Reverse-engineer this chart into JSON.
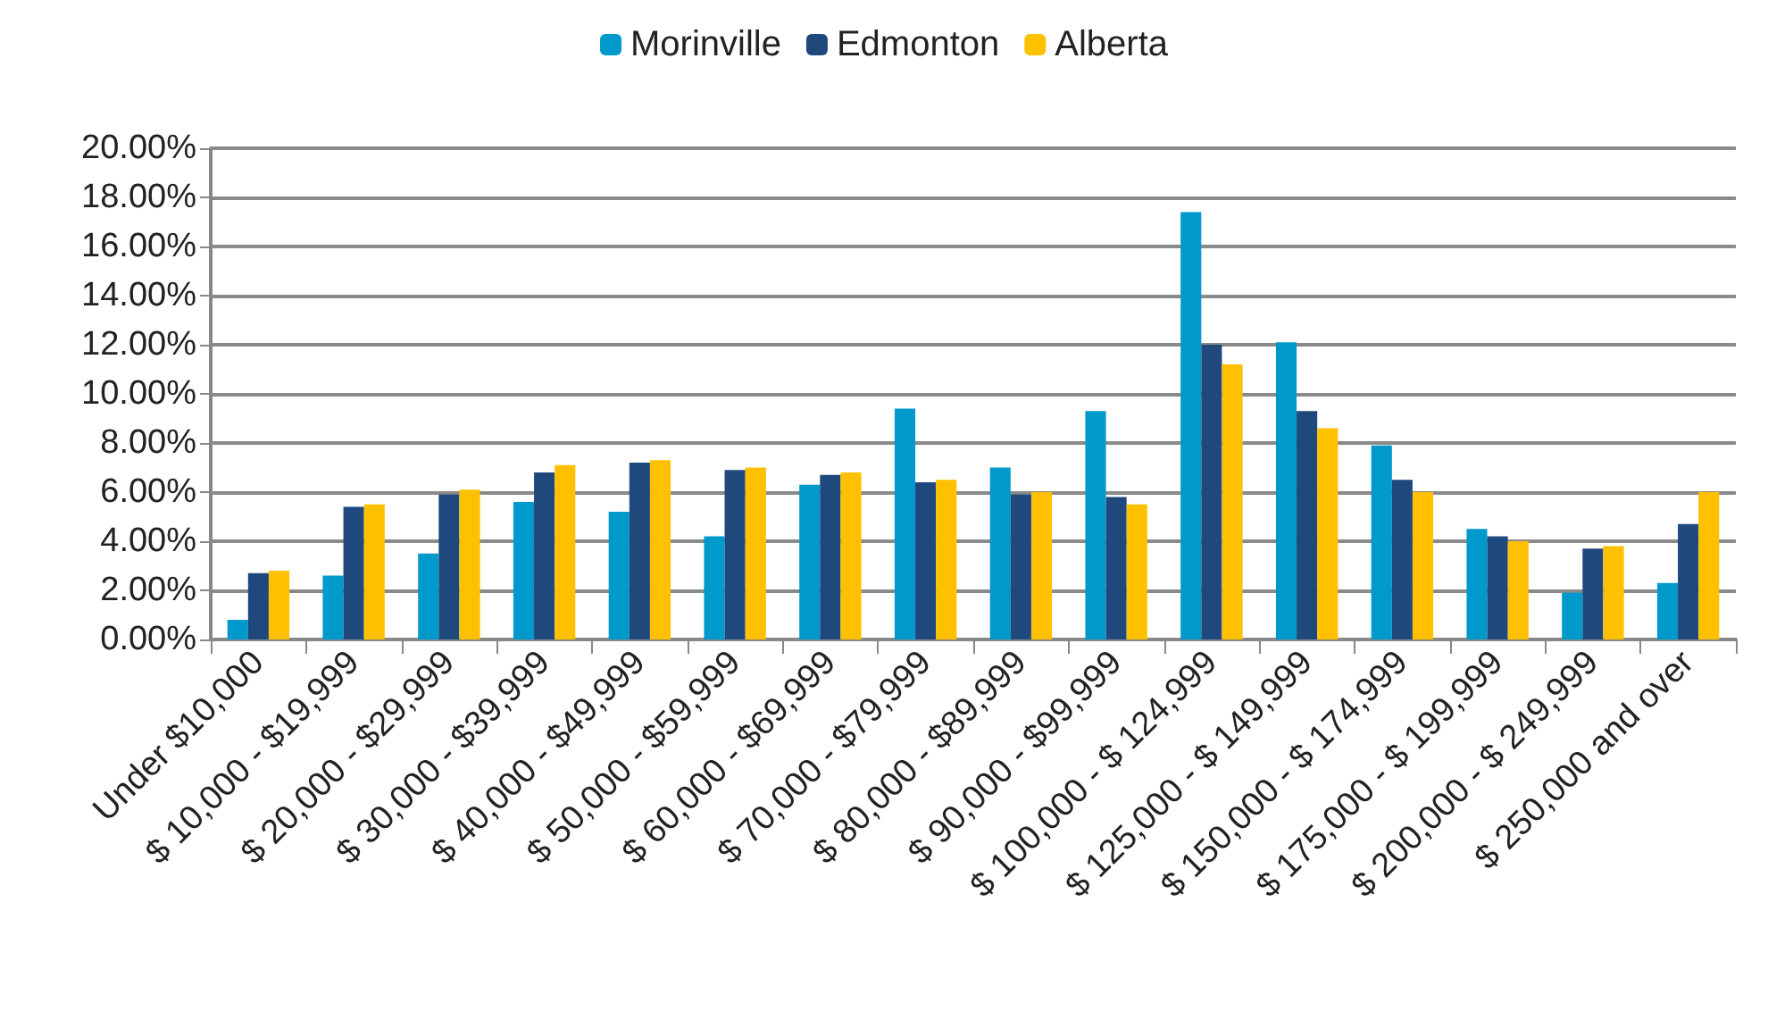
{
  "chart_data": {
    "type": "bar",
    "categories": [
      "Under $10,000",
      "$ 10,000 - $19,999",
      "$ 20,000 - $29,999",
      "$ 30,000 - $39,999",
      "$ 40,000 - $49,999",
      "$ 50,000 - $59,999",
      "$ 60,000 - $69,999",
      "$ 70,000 - $79,999",
      "$ 80,000 - $89,999",
      "$ 90,000 - $99,999",
      "$ 100,000 - $ 124,999",
      "$ 125,000 - $ 149,999",
      "$ 150,000 - $ 174,999",
      "$ 175,000 - $ 199,999",
      "$ 200,000 - $ 249,999",
      "$ 250,000 and over"
    ],
    "series": [
      {
        "name": "Morinville",
        "color": "#0099cc",
        "values": [
          0.8,
          2.6,
          3.5,
          5.6,
          5.2,
          4.2,
          6.3,
          9.4,
          7.0,
          9.3,
          17.4,
          12.1,
          7.9,
          4.5,
          1.9,
          2.3
        ]
      },
      {
        "name": "Edmonton",
        "color": "#1f497d",
        "values": [
          2.7,
          5.4,
          5.9,
          6.8,
          7.2,
          6.9,
          6.7,
          6.4,
          5.9,
          5.8,
          12.0,
          9.3,
          6.5,
          4.2,
          3.7,
          4.7
        ]
      },
      {
        "name": "Alberta",
        "color": "#ffc000",
        "values": [
          2.8,
          5.5,
          6.1,
          7.1,
          7.3,
          7.0,
          6.8,
          6.5,
          6.0,
          5.5,
          11.2,
          8.6,
          6.0,
          4.0,
          3.8,
          6.0
        ]
      }
    ],
    "ylim": [
      0,
      20
    ],
    "yticks": [
      {
        "value": 0,
        "label": "0.00%"
      },
      {
        "value": 2,
        "label": "2.00%"
      },
      {
        "value": 4,
        "label": "4.00%"
      },
      {
        "value": 6,
        "label": "6.00%"
      },
      {
        "value": 8,
        "label": "8.00%"
      },
      {
        "value": 10,
        "label": "10.00%"
      },
      {
        "value": 12,
        "label": "12.00%"
      },
      {
        "value": 14,
        "label": "14.00%"
      },
      {
        "value": 16,
        "label": "16.00%"
      },
      {
        "value": 18,
        "label": "18.00%"
      },
      {
        "value": 20,
        "label": "20.00%"
      }
    ],
    "grid": "y",
    "legend": "top"
  }
}
